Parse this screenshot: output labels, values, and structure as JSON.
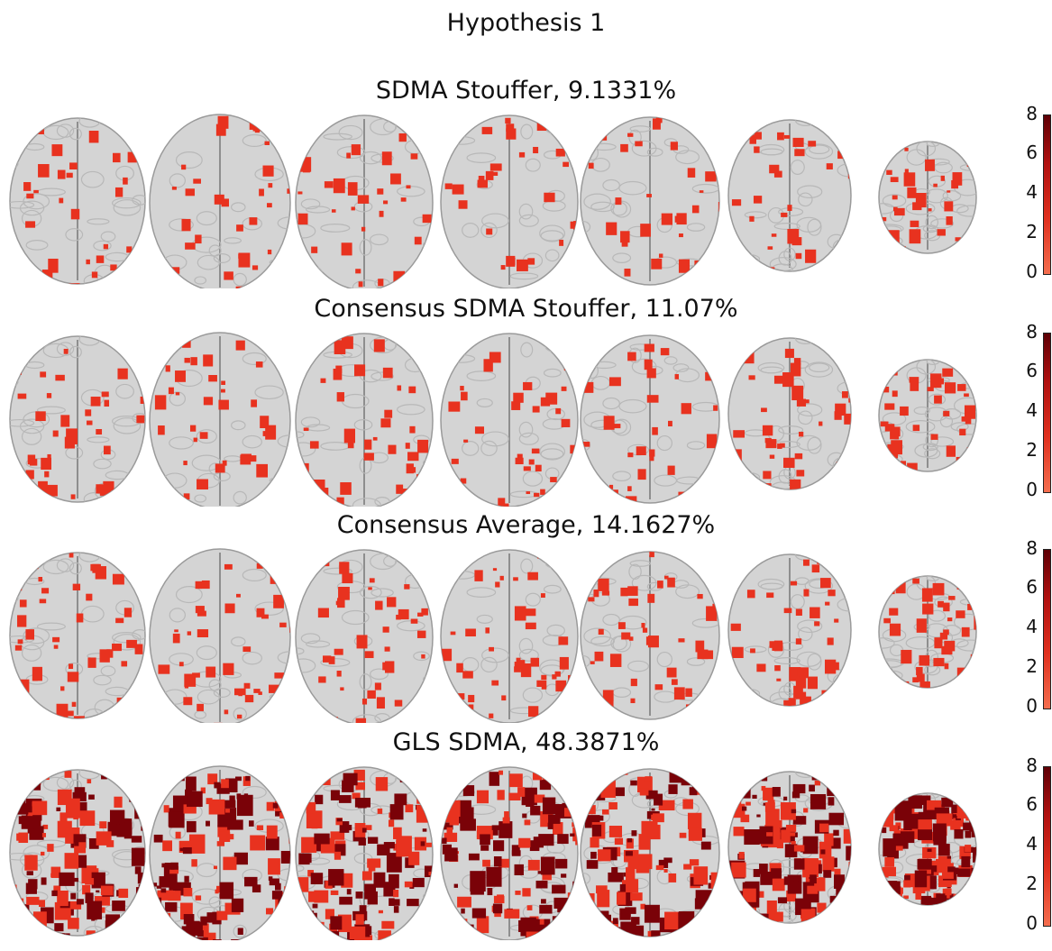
{
  "title": "Hypothesis 1",
  "colorbar_ticks": [
    "8",
    "6",
    "4",
    "2",
    "0"
  ],
  "colors": {
    "overlay_light": "#e8321f",
    "overlay_dark": "#7a0208",
    "brain": "#d4d4d4"
  },
  "panels": [
    {
      "title": "SDMA Stouffer, 9.1331%",
      "density": 0.09
    },
    {
      "title": "Consensus SDMA Stouffer, 11.07%",
      "density": 0.11
    },
    {
      "title": "Consensus Average, 14.1627%",
      "density": 0.14
    },
    {
      "title": "GLS SDMA, 48.3871%",
      "density": 0.48
    }
  ]
}
